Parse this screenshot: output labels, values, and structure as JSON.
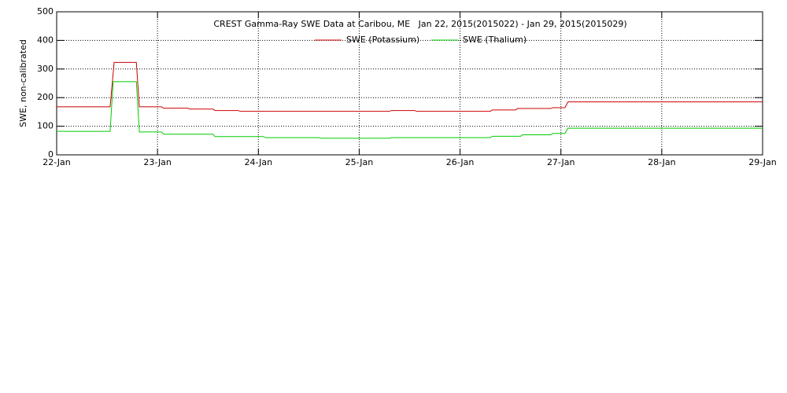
{
  "chart_data": {
    "type": "line",
    "title": "CREST Gamma-Ray SWE Data at Caribou, ME   Jan 22, 2015(2015022) - Jan 29, 2015(2015029)",
    "y_label": "SWE, non-calibrated",
    "xlim": [
      0,
      7
    ],
    "xticks": [
      {
        "value": 0,
        "label": "22-Jan"
      },
      {
        "value": 1,
        "label": "23-Jan"
      },
      {
        "value": 2,
        "label": "24-Jan"
      },
      {
        "value": 3,
        "label": "25-Jan"
      },
      {
        "value": 4,
        "label": "26-Jan"
      },
      {
        "value": 5,
        "label": "27-Jan"
      },
      {
        "value": 6,
        "label": "28-Jan"
      },
      {
        "value": 7,
        "label": "29-Jan"
      }
    ],
    "ylim": [
      0,
      500
    ],
    "yticks": [
      0,
      100,
      200,
      300,
      400,
      500
    ],
    "grid": true,
    "legend": "top",
    "series": [
      {
        "name": "SWE (Potassium)",
        "color": "#cc0000",
        "x": [
          0,
          0.53,
          0.57,
          0.79,
          0.82,
          1.04,
          1.06,
          1.3,
          1.32,
          1.55,
          1.57,
          1.8,
          1.82,
          3.3,
          3.32,
          3.55,
          3.57,
          4.3,
          4.32,
          4.55,
          4.57,
          4.9,
          4.92,
          5.04,
          5.07,
          7
        ],
        "values": [
          168,
          168,
          323,
          323,
          168,
          168,
          163,
          163,
          160,
          160,
          155,
          155,
          152,
          152,
          155,
          155,
          152,
          152,
          157,
          157,
          162,
          162,
          165,
          165,
          185,
          185
        ]
      },
      {
        "name": "SWE (Thalium)",
        "color": "#00cc00",
        "x": [
          0,
          0.53,
          0.56,
          0.79,
          0.82,
          1.04,
          1.06,
          1.55,
          1.57,
          2.05,
          2.07,
          2.6,
          2.62,
          3.3,
          3.32,
          4.3,
          4.32,
          4.6,
          4.62,
          4.9,
          4.92,
          5.04,
          5.07,
          7
        ],
        "values": [
          82,
          82,
          256,
          256,
          80,
          80,
          72,
          72,
          64,
          64,
          60,
          60,
          58,
          58,
          60,
          60,
          65,
          65,
          70,
          70,
          75,
          75,
          93,
          93
        ]
      }
    ]
  }
}
